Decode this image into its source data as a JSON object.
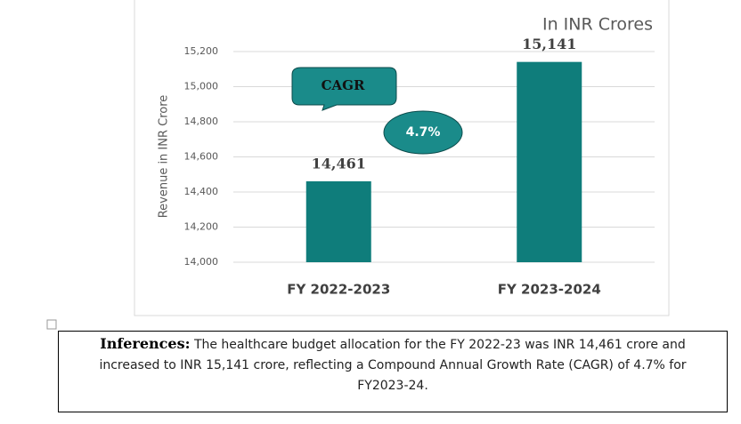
{
  "chart_data": {
    "type": "bar",
    "unit_note": "In INR Crores",
    "y_label": "Revenue in INR Crore",
    "categories": [
      "FY 2022-2023",
      "FY 2023-2024"
    ],
    "values": [
      14461,
      15141
    ],
    "value_labels": [
      "14,461",
      "15,141"
    ],
    "color": "#0f7d7b",
    "ylim": [
      14000,
      15200
    ],
    "yticks": [
      {
        "value": 14000,
        "label": "14,000"
      },
      {
        "value": 14200,
        "label": "14,200"
      },
      {
        "value": 14400,
        "label": "14,400"
      },
      {
        "value": 14600,
        "label": "14,600"
      },
      {
        "value": 14800,
        "label": "14,800"
      },
      {
        "value": 15000,
        "label": "15,000"
      },
      {
        "value": 15200,
        "label": "15,200"
      }
    ],
    "grid": true,
    "annotations": [
      "CAGR",
      "4.7%"
    ]
  },
  "inferences": {
    "heading": "Inferences:",
    "text": "The healthcare budget allocation for the FY 2022-23 was INR 14,461 crore and increased to INR 15,141 crore, reflecting a Compound Annual Growth Rate (CAGR) of 4.7% for FY2023-24."
  }
}
